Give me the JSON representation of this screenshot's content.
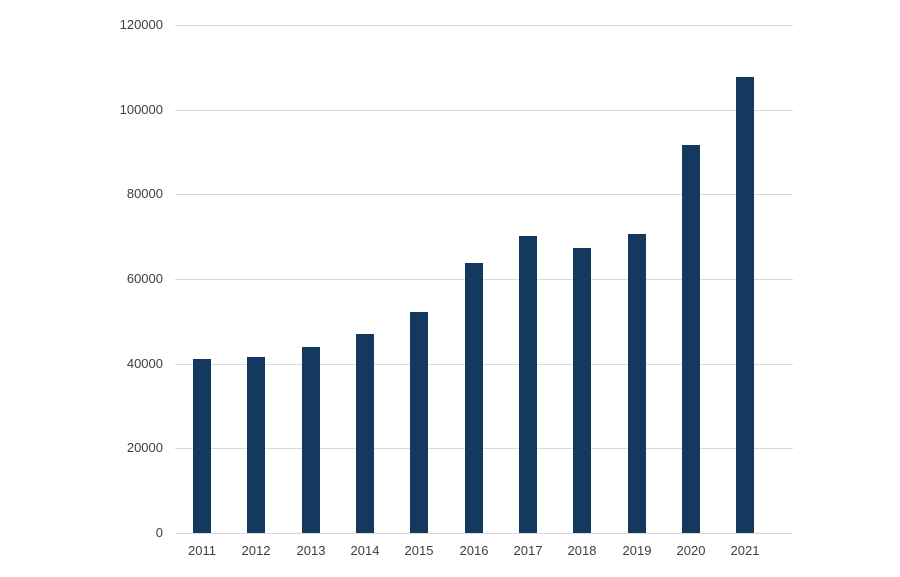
{
  "chart_data": {
    "type": "bar",
    "title": "",
    "xlabel": "",
    "ylabel": "",
    "categories": [
      "2011",
      "2012",
      "2013",
      "2014",
      "2015",
      "2016",
      "2017",
      "2018",
      "2019",
      "2020",
      "2021"
    ],
    "values": [
      41200,
      41600,
      44000,
      47100,
      52300,
      63700,
      70200,
      67300,
      70700,
      91700,
      107800
    ],
    "ylim": [
      0,
      120000
    ],
    "yticks": [
      0,
      20000,
      40000,
      60000,
      80000,
      100000,
      120000
    ],
    "ytick_labels": [
      "0",
      "20000",
      "40000",
      "60000",
      "80000",
      "100000",
      "120000"
    ],
    "grid": true,
    "legend": null,
    "colors": {
      "bar": "#14395f",
      "gridline": "#d9d9d9",
      "tick_label": "#404040",
      "background": "#ffffff"
    }
  }
}
